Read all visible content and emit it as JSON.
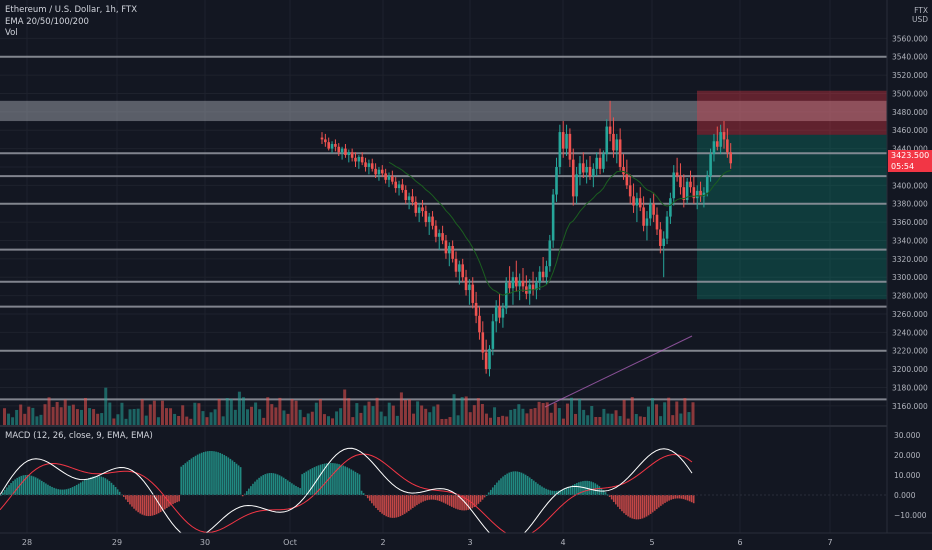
{
  "header": {
    "title": "Ethereum / U.S. Dollar, 1h, FTX",
    "ema_label": "EMA 20/50/100/200",
    "vol_label": "Vol"
  },
  "macd_label": "MACD (12, 26, close, 9, EMA, EMA)",
  "currency": {
    "exchange": "FTX",
    "quote": "USD"
  },
  "price_axis": {
    "ticks": [
      "3560.000",
      "3540.000",
      "3520.000",
      "3500.000",
      "3480.000",
      "3460.000",
      "3440.000",
      "3420.000",
      "3400.000",
      "3380.000",
      "3360.000",
      "3340.000",
      "3320.000",
      "3300.000",
      "3280.000",
      "3260.000",
      "3240.000",
      "3220.000",
      "3200.000",
      "3180.000",
      "3160.000"
    ]
  },
  "current_price": {
    "value": "3423.500",
    "countdown": "05:54"
  },
  "macd_axis": {
    "ticks": [
      "30.000",
      "20.000",
      "10.000",
      "0.000",
      "−10.000"
    ]
  },
  "time_axis": {
    "ticks": [
      "28",
      "29",
      "30",
      "Oct",
      "2",
      "3",
      "4",
      "5",
      "6",
      "7"
    ]
  },
  "colors": {
    "background": "#131722",
    "bull": "#26a69a",
    "bear": "#ef5350",
    "level_line": "#9598a1",
    "supply_zone": "#b2b5be",
    "stop_zone": "#f23645",
    "target_zone": "#089981",
    "ema": "#1b5e20",
    "macd_line": "#ffffff",
    "signal_line": "#f23645",
    "trend_line": "#ba68c8"
  },
  "chart_data": {
    "type": "candlestick",
    "symbol": "ETH/USD",
    "interval": "1h",
    "ylim": [
      3150,
      3580
    ],
    "horizontal_levels": [
      3540,
      3410,
      3435,
      3380,
      3330,
      3295,
      3268,
      3220,
      3167
    ],
    "supply_zone": [
      3470,
      3492
    ],
    "position": {
      "entry": 3455,
      "stop_range": [
        3455,
        3503
      ],
      "target_range": [
        3276,
        3455
      ]
    },
    "candles": [
      [
        3452,
        3458,
        3445,
        3450
      ],
      [
        3450,
        3456,
        3442,
        3447
      ],
      [
        3447,
        3452,
        3438,
        3440
      ],
      [
        3440,
        3448,
        3435,
        3445
      ],
      [
        3445,
        3450,
        3437,
        3442
      ],
      [
        3442,
        3446,
        3432,
        3436
      ],
      [
        3436,
        3442,
        3428,
        3440
      ],
      [
        3440,
        3445,
        3430,
        3433
      ],
      [
        3433,
        3439,
        3425,
        3436
      ],
      [
        3436,
        3440,
        3426,
        3430
      ],
      [
        3430,
        3436,
        3420,
        3426
      ],
      [
        3426,
        3433,
        3418,
        3431
      ],
      [
        3431,
        3436,
        3422,
        3425
      ],
      [
        3425,
        3430,
        3415,
        3420
      ],
      [
        3420,
        3428,
        3412,
        3424
      ],
      [
        3424,
        3429,
        3415,
        3418
      ],
      [
        3418,
        3424,
        3408,
        3412
      ],
      [
        3412,
        3420,
        3405,
        3417
      ],
      [
        3417,
        3422,
        3409,
        3413
      ],
      [
        3413,
        3418,
        3402,
        3406
      ],
      [
        3406,
        3414,
        3398,
        3410
      ],
      [
        3410,
        3416,
        3401,
        3404
      ],
      [
        3404,
        3409,
        3392,
        3397
      ],
      [
        3397,
        3405,
        3389,
        3401
      ],
      [
        3401,
        3407,
        3392,
        3395
      ],
      [
        3395,
        3400,
        3380,
        3384
      ],
      [
        3384,
        3392,
        3374,
        3388
      ],
      [
        3388,
        3396,
        3378,
        3382
      ],
      [
        3382,
        3388,
        3366,
        3370
      ],
      [
        3370,
        3380,
        3360,
        3376
      ],
      [
        3376,
        3384,
        3366,
        3372
      ],
      [
        3372,
        3378,
        3355,
        3360
      ],
      [
        3360,
        3370,
        3346,
        3366
      ],
      [
        3366,
        3372,
        3352,
        3356
      ],
      [
        3356,
        3362,
        3338,
        3344
      ],
      [
        3344,
        3352,
        3330,
        3348
      ],
      [
        3348,
        3356,
        3336,
        3340
      ],
      [
        3340,
        3346,
        3320,
        3326
      ],
      [
        3326,
        3338,
        3312,
        3334
      ],
      [
        3334,
        3340,
        3316,
        3320
      ],
      [
        3320,
        3328,
        3300,
        3306
      ],
      [
        3306,
        3318,
        3292,
        3314
      ],
      [
        3314,
        3320,
        3295,
        3300
      ],
      [
        3300,
        3308,
        3280,
        3286
      ],
      [
        3286,
        3298,
        3270,
        3292
      ],
      [
        3292,
        3300,
        3266,
        3272
      ],
      [
        3272,
        3284,
        3250,
        3258
      ],
      [
        3258,
        3268,
        3232,
        3240
      ],
      [
        3240,
        3252,
        3210,
        3218
      ],
      [
        3218,
        3232,
        3195,
        3200
      ],
      [
        3200,
        3226,
        3192,
        3222
      ],
      [
        3222,
        3260,
        3215,
        3252
      ],
      [
        3252,
        3275,
        3240,
        3268
      ],
      [
        3268,
        3282,
        3250,
        3256
      ],
      [
        3256,
        3272,
        3245,
        3266
      ],
      [
        3266,
        3300,
        3260,
        3294
      ],
      [
        3294,
        3312,
        3282,
        3288
      ],
      [
        3288,
        3306,
        3270,
        3300
      ],
      [
        3300,
        3318,
        3284,
        3290
      ],
      [
        3290,
        3304,
        3275,
        3296
      ],
      [
        3296,
        3310,
        3284,
        3290
      ],
      [
        3290,
        3302,
        3276,
        3282
      ],
      [
        3282,
        3298,
        3270,
        3292
      ],
      [
        3292,
        3306,
        3280,
        3286
      ],
      [
        3286,
        3300,
        3276,
        3294
      ],
      [
        3294,
        3312,
        3286,
        3306
      ],
      [
        3306,
        3322,
        3296,
        3300
      ],
      [
        3300,
        3318,
        3292,
        3312
      ],
      [
        3312,
        3346,
        3306,
        3340
      ],
      [
        3340,
        3396,
        3332,
        3390
      ],
      [
        3390,
        3430,
        3382,
        3420
      ],
      [
        3420,
        3466,
        3412,
        3458
      ],
      [
        3458,
        3470,
        3430,
        3440
      ],
      [
        3440,
        3466,
        3432,
        3456
      ],
      [
        3456,
        3462,
        3420,
        3428
      ],
      [
        3428,
        3440,
        3378,
        3388
      ],
      [
        3388,
        3420,
        3380,
        3412
      ],
      [
        3412,
        3432,
        3400,
        3424
      ],
      [
        3424,
        3436,
        3408,
        3414
      ],
      [
        3414,
        3428,
        3402,
        3420
      ],
      [
        3420,
        3432,
        3406,
        3410
      ],
      [
        3410,
        3424,
        3398,
        3418
      ],
      [
        3418,
        3436,
        3410,
        3430
      ],
      [
        3430,
        3440,
        3412,
        3418
      ],
      [
        3418,
        3438,
        3414,
        3434
      ],
      [
        3434,
        3472,
        3426,
        3464
      ],
      [
        3464,
        3492,
        3448,
        3456
      ],
      [
        3456,
        3474,
        3430,
        3438
      ],
      [
        3438,
        3456,
        3424,
        3450
      ],
      [
        3450,
        3462,
        3416,
        3420
      ],
      [
        3420,
        3434,
        3406,
        3412
      ],
      [
        3412,
        3428,
        3396,
        3400
      ],
      [
        3400,
        3412,
        3380,
        3388
      ],
      [
        3388,
        3402,
        3370,
        3378
      ],
      [
        3378,
        3392,
        3360,
        3386
      ],
      [
        3386,
        3398,
        3372,
        3376
      ],
      [
        3376,
        3388,
        3350,
        3356
      ],
      [
        3356,
        3372,
        3340,
        3364
      ],
      [
        3364,
        3386,
        3356,
        3380
      ],
      [
        3380,
        3392,
        3360,
        3368
      ],
      [
        3368,
        3376,
        3346,
        3352
      ],
      [
        3352,
        3360,
        3326,
        3334
      ],
      [
        3334,
        3350,
        3300,
        3342
      ],
      [
        3342,
        3372,
        3336,
        3366
      ],
      [
        3366,
        3392,
        3358,
        3386
      ],
      [
        3386,
        3422,
        3378,
        3414
      ],
      [
        3414,
        3430,
        3404,
        3410
      ],
      [
        3410,
        3424,
        3390,
        3398
      ],
      [
        3398,
        3412,
        3376,
        3384
      ],
      [
        3384,
        3408,
        3380,
        3404
      ],
      [
        3404,
        3416,
        3392,
        3398
      ],
      [
        3398,
        3410,
        3380,
        3386
      ],
      [
        3386,
        3400,
        3374,
        3394
      ],
      [
        3394,
        3404,
        3382,
        3388
      ],
      [
        3388,
        3398,
        3376,
        3392
      ],
      [
        3392,
        3416,
        3388,
        3410
      ],
      [
        3410,
        3440,
        3404,
        3434
      ],
      [
        3434,
        3456,
        3426,
        3448
      ],
      [
        3448,
        3464,
        3438,
        3442
      ],
      [
        3442,
        3466,
        3434,
        3458
      ],
      [
        3458,
        3470,
        3440,
        3450
      ],
      [
        3450,
        3462,
        3430,
        3436
      ],
      [
        3436,
        3446,
        3418,
        3424
      ]
    ]
  }
}
